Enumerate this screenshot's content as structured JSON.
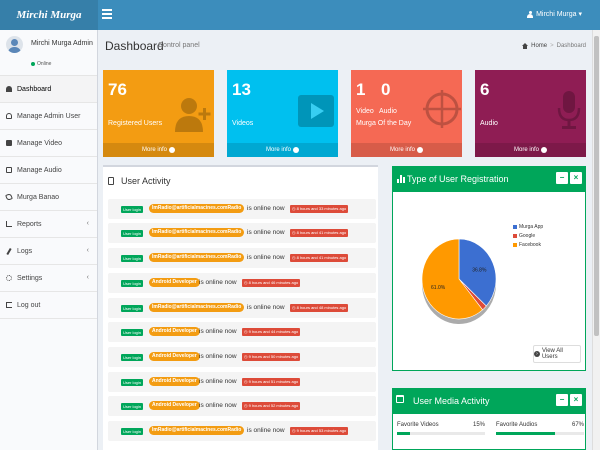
{
  "brand": {
    "logo": "Mirchi Murga"
  },
  "navbar": {
    "user_label": "Mirchi Murga ▾"
  },
  "sidebar": {
    "user_name": "Mirchi Murga Admin",
    "status": "Online",
    "items": [
      {
        "label": "Dashboard",
        "icon": "dashboard-icon"
      },
      {
        "label": "Manage Admin User",
        "icon": "user-icon"
      },
      {
        "label": "Manage Video",
        "icon": "video-icon"
      },
      {
        "label": "Manage Audio",
        "icon": "audio-icon"
      },
      {
        "label": "Murga Banao",
        "icon": "thumbs-up-icon"
      },
      {
        "label": "Reports",
        "icon": "report-icon"
      },
      {
        "label": "Logs",
        "icon": "pin-icon"
      },
      {
        "label": "Settings",
        "icon": "gear-icon"
      },
      {
        "label": "Log out",
        "icon": "logout-icon"
      }
    ],
    "chevron": "‹"
  },
  "header": {
    "title": "Dashboard",
    "subtitle": "Control panel",
    "breadcrumb_home": "Home",
    "breadcrumb_sep": ">",
    "breadcrumb_current": "Dashboard"
  },
  "stats": [
    {
      "number": "76",
      "label": "Registered Users",
      "footer": "More info",
      "color": "#f39c12"
    },
    {
      "number": "13",
      "label": "Videos",
      "footer": "More info",
      "color": "#00c0ef"
    },
    {
      "number": "1",
      "number2": "0",
      "label_a": "Video",
      "label_b": "Audio",
      "label": "Murga Of the Day",
      "footer": "More info",
      "color": "#f56954"
    },
    {
      "number": "6",
      "label": "Audio",
      "footer": "More info",
      "color": "#8f1d54"
    }
  ],
  "activity": {
    "title": "User Activity",
    "rows": [
      {
        "tag": "User login",
        "who": "ImRadio@artificialmacines.comRadio",
        "status": "is online now",
        "time": "8 hours and 33 minutes ago"
      },
      {
        "tag": "User login",
        "who": "ImRadio@artificialmacines.comRadio",
        "status": "is online now",
        "time": "8 hours and 41 minutes ago"
      },
      {
        "tag": "User login",
        "who": "ImRadio@artificialmacines.comRadio",
        "status": "is online now",
        "time": "8 hours and 41 minutes ago"
      },
      {
        "tag": "User login",
        "who": "Android Developer",
        "status": "is online now",
        "time": "8 hours and 46 minutes ago"
      },
      {
        "tag": "User login",
        "who": "ImRadio@artificialmacines.comRadio",
        "status": "is online now",
        "time": "8 hours and 48 minutes ago"
      },
      {
        "tag": "User login",
        "who": "Android Developer",
        "status": "is online now",
        "time": "9 hours and 44 minutes ago"
      },
      {
        "tag": "User login",
        "who": "Android Developer",
        "status": "is online now",
        "time": "9 hours and 50 minutes ago"
      },
      {
        "tag": "User login",
        "who": "Android Developer",
        "status": "is online now",
        "time": "9 hours and 51 minutes ago"
      },
      {
        "tag": "User login",
        "who": "Android Developer",
        "status": "is online now",
        "time": "9 hours and 52 minutes ago"
      },
      {
        "tag": "User login",
        "who": "ImRadio@artificialmacines.comRadio",
        "status": "is online now",
        "time": "9 hours and 53 minutes ago"
      }
    ]
  },
  "registration": {
    "title": "Type of User Registration",
    "minimize": "−",
    "close": "×",
    "view_all": "View All Users"
  },
  "chart_data": {
    "type": "pie",
    "categories": [
      "Murga App",
      "Google",
      "Facebook"
    ],
    "values": [
      36.8,
      2.2,
      61.0
    ],
    "colors": [
      "#3c6fd1",
      "#dd4b39",
      "#ff9900"
    ],
    "labels": [
      "36.8%",
      "",
      "61.0%"
    ],
    "legend": "right"
  },
  "media": {
    "title": "User Media Activity",
    "minimize": "−",
    "close": "×",
    "items": [
      {
        "label": "Favorite Videos",
        "value": "15%",
        "percent": 15
      },
      {
        "label": "Favorite Audios",
        "value": "67%",
        "percent": 67
      }
    ]
  }
}
